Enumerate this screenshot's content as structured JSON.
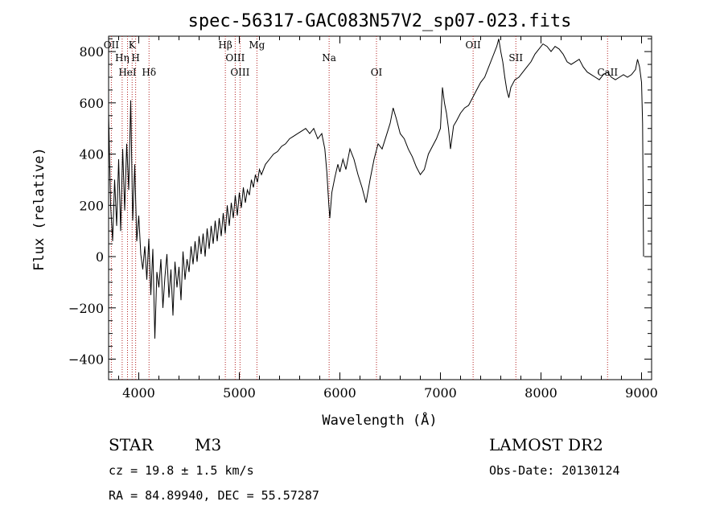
{
  "chart_data": {
    "type": "line",
    "title": "spec-56317-GAC083N57V2_sp07-023.fits",
    "xlabel": "Wavelength (Å)",
    "ylabel": "Flux (relative)",
    "xlim": [
      3700,
      9100
    ],
    "ylim": [
      -480,
      860
    ],
    "x_ticks": [
      4000,
      5000,
      6000,
      7000,
      8000,
      9000
    ],
    "y_ticks": [
      -400,
      -200,
      0,
      200,
      400,
      600,
      800
    ],
    "x_minor_step": 200,
    "y_minor_step": 50,
    "series": [
      {
        "color": "#000000",
        "points": [
          [
            3700,
            560
          ],
          [
            3720,
            200
          ],
          [
            3740,
            60
          ],
          [
            3760,
            300
          ],
          [
            3780,
            120
          ],
          [
            3800,
            380
          ],
          [
            3820,
            100
          ],
          [
            3840,
            420
          ],
          [
            3860,
            180
          ],
          [
            3880,
            440
          ],
          [
            3900,
            260
          ],
          [
            3920,
            610
          ],
          [
            3940,
            140
          ],
          [
            3960,
            360
          ],
          [
            3980,
            60
          ],
          [
            4000,
            160
          ],
          [
            4020,
            10
          ],
          [
            4040,
            -50
          ],
          [
            4060,
            40
          ],
          [
            4080,
            -90
          ],
          [
            4100,
            70
          ],
          [
            4120,
            -150
          ],
          [
            4140,
            30
          ],
          [
            4160,
            -320
          ],
          [
            4180,
            -60
          ],
          [
            4200,
            -120
          ],
          [
            4220,
            -10
          ],
          [
            4240,
            -200
          ],
          [
            4260,
            -80
          ],
          [
            4280,
            10
          ],
          [
            4300,
            -160
          ],
          [
            4320,
            -50
          ],
          [
            4340,
            -230
          ],
          [
            4360,
            -20
          ],
          [
            4380,
            -120
          ],
          [
            4400,
            -40
          ],
          [
            4420,
            -170
          ],
          [
            4440,
            20
          ],
          [
            4460,
            -90
          ],
          [
            4480,
            -10
          ],
          [
            4500,
            -60
          ],
          [
            4520,
            40
          ],
          [
            4540,
            -30
          ],
          [
            4560,
            60
          ],
          [
            4580,
            -20
          ],
          [
            4600,
            80
          ],
          [
            4620,
            10
          ],
          [
            4640,
            90
          ],
          [
            4660,
            0
          ],
          [
            4680,
            110
          ],
          [
            4700,
            30
          ],
          [
            4720,
            120
          ],
          [
            4740,
            50
          ],
          [
            4760,
            140
          ],
          [
            4780,
            60
          ],
          [
            4800,
            150
          ],
          [
            4820,
            80
          ],
          [
            4840,
            170
          ],
          [
            4860,
            90
          ],
          [
            4880,
            200
          ],
          [
            4900,
            120
          ],
          [
            4920,
            210
          ],
          [
            4940,
            150
          ],
          [
            4960,
            240
          ],
          [
            4980,
            160
          ],
          [
            5000,
            250
          ],
          [
            5020,
            190
          ],
          [
            5040,
            270
          ],
          [
            5060,
            210
          ],
          [
            5080,
            260
          ],
          [
            5100,
            240
          ],
          [
            5120,
            300
          ],
          [
            5140,
            270
          ],
          [
            5160,
            320
          ],
          [
            5180,
            290
          ],
          [
            5200,
            340
          ],
          [
            5220,
            320
          ],
          [
            5260,
            360
          ],
          [
            5300,
            380
          ],
          [
            5340,
            400
          ],
          [
            5380,
            410
          ],
          [
            5420,
            430
          ],
          [
            5460,
            440
          ],
          [
            5500,
            460
          ],
          [
            5540,
            470
          ],
          [
            5580,
            480
          ],
          [
            5620,
            490
          ],
          [
            5660,
            500
          ],
          [
            5700,
            480
          ],
          [
            5740,
            500
          ],
          [
            5780,
            460
          ],
          [
            5820,
            480
          ],
          [
            5850,
            420
          ],
          [
            5870,
            330
          ],
          [
            5890,
            200
          ],
          [
            5900,
            150
          ],
          [
            5920,
            250
          ],
          [
            5950,
            310
          ],
          [
            5980,
            360
          ],
          [
            6000,
            330
          ],
          [
            6030,
            380
          ],
          [
            6060,
            340
          ],
          [
            6100,
            420
          ],
          [
            6140,
            380
          ],
          [
            6180,
            320
          ],
          [
            6220,
            270
          ],
          [
            6260,
            210
          ],
          [
            6300,
            300
          ],
          [
            6340,
            380
          ],
          [
            6380,
            440
          ],
          [
            6420,
            420
          ],
          [
            6460,
            470
          ],
          [
            6500,
            520
          ],
          [
            6530,
            580
          ],
          [
            6560,
            540
          ],
          [
            6600,
            480
          ],
          [
            6640,
            460
          ],
          [
            6680,
            420
          ],
          [
            6720,
            390
          ],
          [
            6760,
            350
          ],
          [
            6800,
            320
          ],
          [
            6840,
            340
          ],
          [
            6880,
            400
          ],
          [
            6920,
            430
          ],
          [
            6960,
            460
          ],
          [
            7000,
            500
          ],
          [
            7020,
            660
          ],
          [
            7040,
            600
          ],
          [
            7060,
            560
          ],
          [
            7080,
            500
          ],
          [
            7100,
            420
          ],
          [
            7130,
            510
          ],
          [
            7160,
            530
          ],
          [
            7200,
            560
          ],
          [
            7240,
            580
          ],
          [
            7280,
            590
          ],
          [
            7320,
            620
          ],
          [
            7360,
            650
          ],
          [
            7400,
            680
          ],
          [
            7440,
            700
          ],
          [
            7480,
            740
          ],
          [
            7520,
            780
          ],
          [
            7560,
            820
          ],
          [
            7580,
            850
          ],
          [
            7600,
            800
          ],
          [
            7620,
            760
          ],
          [
            7640,
            700
          ],
          [
            7660,
            650
          ],
          [
            7680,
            620
          ],
          [
            7700,
            660
          ],
          [
            7740,
            690
          ],
          [
            7780,
            700
          ],
          [
            7820,
            720
          ],
          [
            7860,
            740
          ],
          [
            7900,
            760
          ],
          [
            7940,
            790
          ],
          [
            7980,
            810
          ],
          [
            8020,
            830
          ],
          [
            8060,
            820
          ],
          [
            8100,
            800
          ],
          [
            8140,
            820
          ],
          [
            8180,
            810
          ],
          [
            8220,
            790
          ],
          [
            8260,
            760
          ],
          [
            8300,
            750
          ],
          [
            8340,
            760
          ],
          [
            8380,
            770
          ],
          [
            8420,
            740
          ],
          [
            8460,
            720
          ],
          [
            8500,
            710
          ],
          [
            8540,
            700
          ],
          [
            8580,
            690
          ],
          [
            8620,
            710
          ],
          [
            8660,
            720
          ],
          [
            8700,
            700
          ],
          [
            8740,
            690
          ],
          [
            8780,
            700
          ],
          [
            8820,
            710
          ],
          [
            8860,
            700
          ],
          [
            8900,
            710
          ],
          [
            8940,
            730
          ],
          [
            8960,
            770
          ],
          [
            8980,
            740
          ],
          [
            9000,
            680
          ],
          [
            9010,
            520
          ],
          [
            9020,
            0
          ]
        ]
      }
    ],
    "lines": [
      {
        "label": "OII",
        "x": 3727
      },
      {
        "label": "Hη",
        "x": 3835
      },
      {
        "label": "HeI",
        "x": 3888
      },
      {
        "label": "K",
        "x": 3934
      },
      {
        "label": "H",
        "x": 3969
      },
      {
        "label": "Hδ",
        "x": 4102
      },
      {
        "label": "Hβ",
        "x": 4861
      },
      {
        "label": "OIII",
        "x": 4959
      },
      {
        "label": "OIII",
        "x": 5007
      },
      {
        "label": "Mg",
        "x": 5175
      },
      {
        "label": "Na",
        "x": 5893
      },
      {
        "label": "OI",
        "x": 6364
      },
      {
        "label": "OII",
        "x": 7325
      },
      {
        "label": "SII",
        "x": 7750
      },
      {
        "label": "CaII",
        "x": 8662
      }
    ]
  },
  "info": {
    "class": "STAR",
    "subclass": "M3",
    "survey": "LAMOST DR2",
    "cz": "cz = 19.8 ± 1.5 km/s",
    "obs_date": "Obs-Date: 20130124",
    "radec": "RA =  84.89940, DEC =  55.57287"
  }
}
